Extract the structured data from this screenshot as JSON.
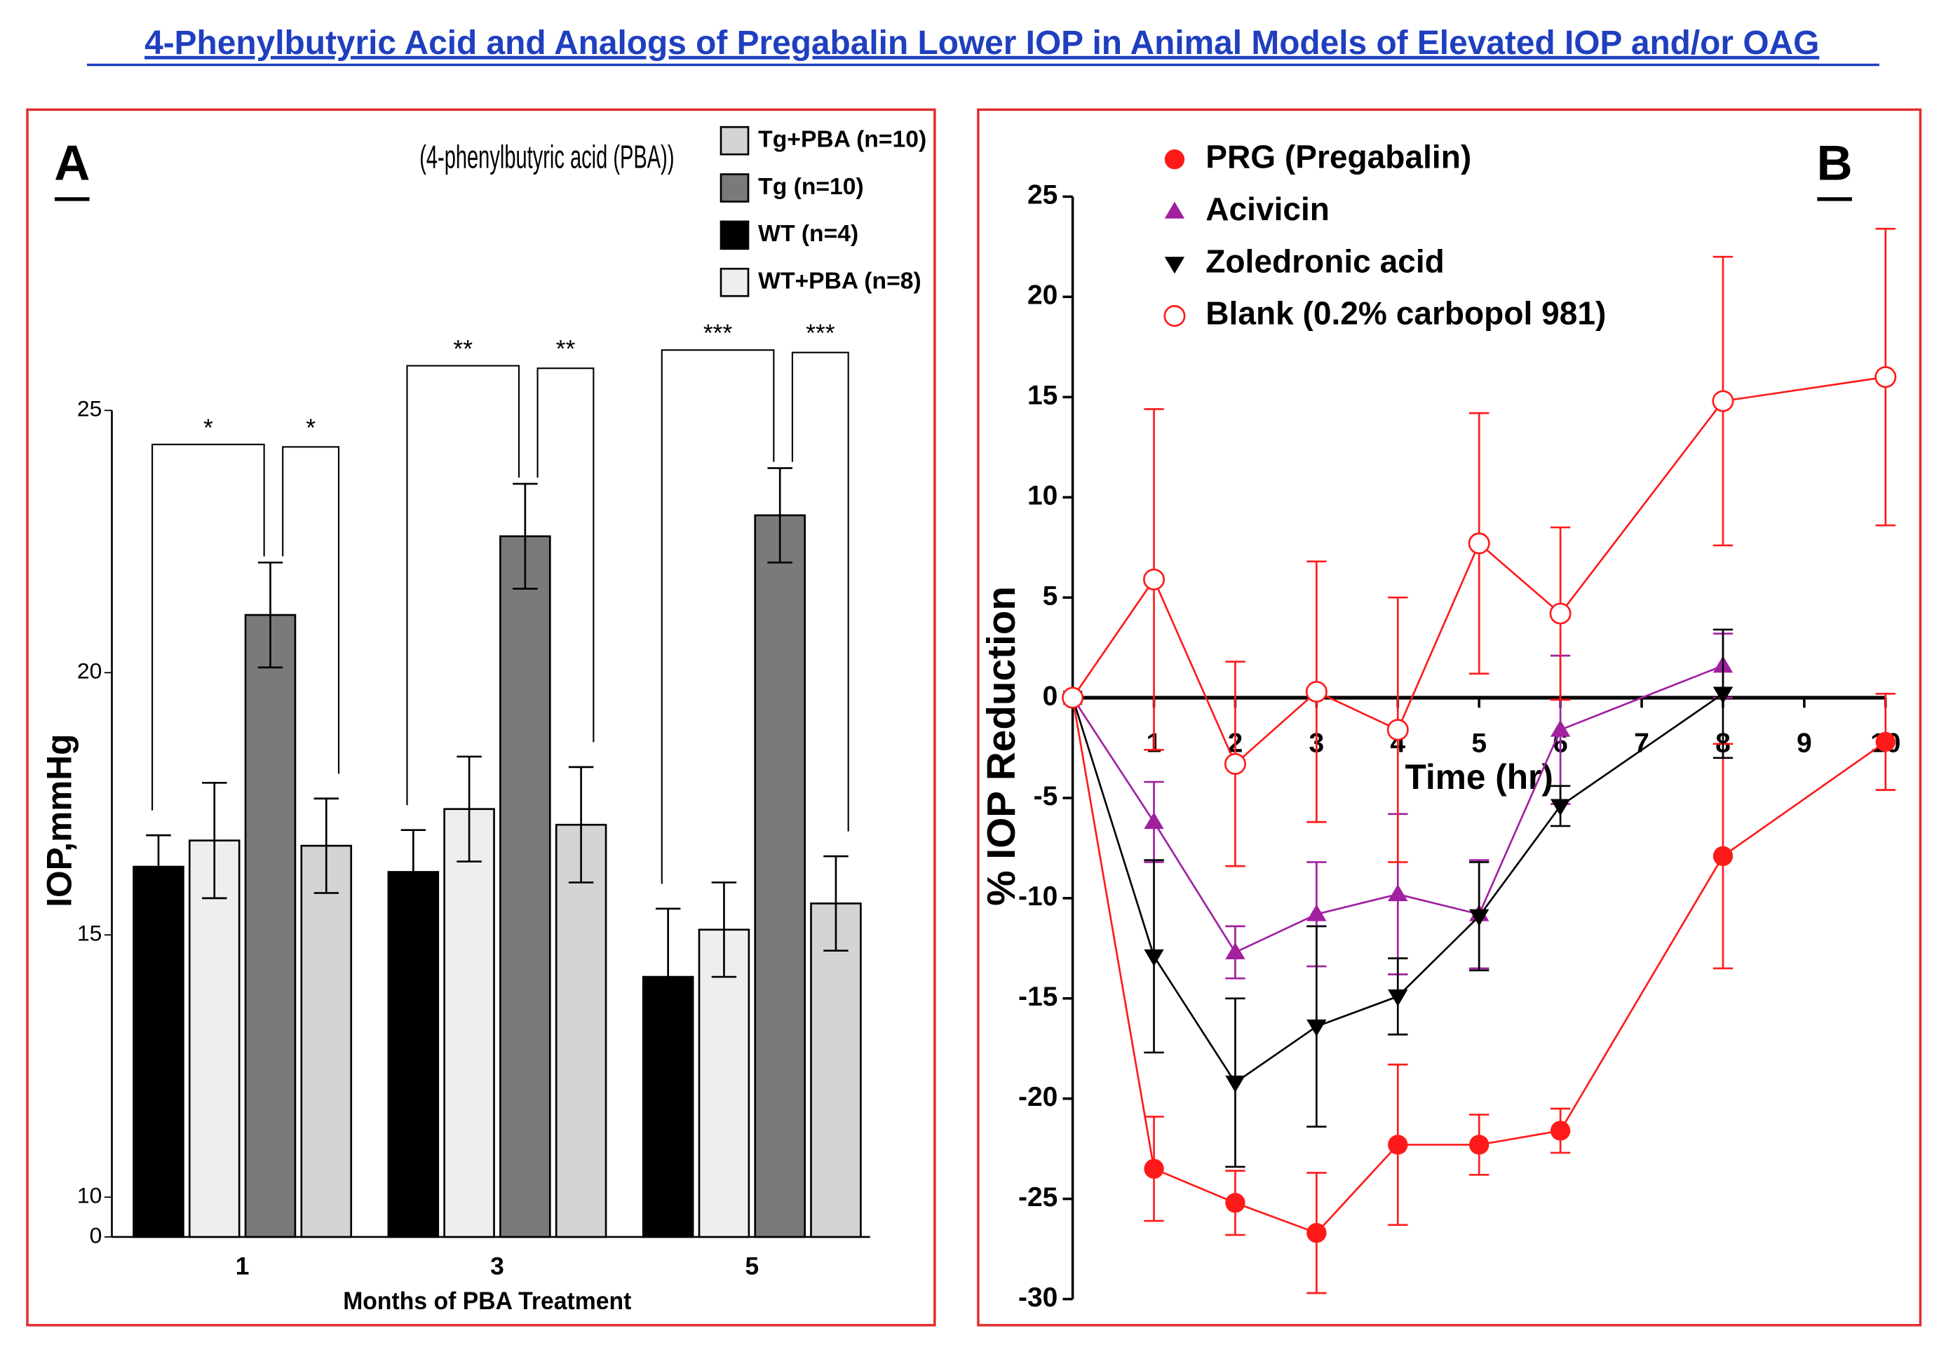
{
  "title": "4-Phenylbutyric Acid and Analogs of Pregabalin Lower IOP in Animal Models of Elevated IOP and/or OAG",
  "chart_data": [
    {
      "type": "bar",
      "panel_label": "A",
      "annotation": "(4-phenylbutyric acid (PBA))",
      "categories": [
        "1",
        "3",
        "5"
      ],
      "xlabel": "Months of PBA Treatment",
      "ylabel": "IOP,mmHg",
      "ylim": [
        0,
        25
      ],
      "ybreak": [
        0,
        10
      ],
      "yticks": [
        0,
        10,
        15,
        20,
        25
      ],
      "series": [
        {
          "name": "WT (n=4)",
          "color": "#000000",
          "values": [
            16.3,
            16.2,
            14.2
          ],
          "errors": [
            0.6,
            0.8,
            1.3
          ]
        },
        {
          "name": "WT+PBA (n=8)",
          "color": "#eeeeee",
          "values": [
            16.8,
            17.4,
            15.1
          ],
          "errors": [
            1.1,
            1.0,
            0.9
          ]
        },
        {
          "name": "Tg (n=10)",
          "color": "#7a7a7a",
          "values": [
            21.1,
            22.6,
            23.0
          ],
          "errors": [
            1.0,
            1.0,
            0.9
          ]
        },
        {
          "name": "Tg+PBA (n=10)",
          "color": "#d4d4d4",
          "values": [
            16.7,
            17.1,
            15.6
          ],
          "errors": [
            0.9,
            1.1,
            0.9
          ]
        }
      ],
      "significance": [
        "*",
        "**",
        "***"
      ]
    },
    {
      "type": "line",
      "panel_label": "B",
      "xlabel": "Time (hr)",
      "ylabel": "% IOP Reduction",
      "xlim": [
        0,
        10
      ],
      "xticks": [
        1,
        2,
        3,
        4,
        5,
        6,
        7,
        8,
        9,
        10
      ],
      "ylim": [
        -30,
        25
      ],
      "yticks": [
        25,
        20,
        15,
        10,
        5,
        0,
        -5,
        -10,
        -15,
        -20,
        -25,
        -30
      ],
      "series": [
        {
          "name": "PRG (Pregabalin)",
          "color": "#ff1a1a",
          "marker": "circle",
          "x": [
            0,
            1,
            2,
            3,
            4,
            5,
            6,
            8,
            10
          ],
          "values": [
            0,
            -23.5,
            -25.2,
            -26.7,
            -22.3,
            -22.3,
            -21.6,
            -7.9,
            -2.2
          ],
          "errors": [
            0,
            2.6,
            1.6,
            3.0,
            4.0,
            1.5,
            1.1,
            5.6,
            2.4
          ]
        },
        {
          "name": "Acivicin",
          "color": "#a020a0",
          "marker": "triangle-up",
          "x": [
            0,
            1,
            2,
            3,
            4,
            5,
            6,
            8
          ],
          "values": [
            0,
            -6.2,
            -12.7,
            -10.8,
            -9.8,
            -10.8,
            -1.6,
            1.6
          ],
          "errors": [
            0,
            2.0,
            1.3,
            2.6,
            4.0,
            2.7,
            3.7,
            1.6
          ]
        },
        {
          "name": "Zoledronic acid",
          "color": "#000000",
          "marker": "triangle-down",
          "x": [
            0,
            1,
            2,
            3,
            4,
            5,
            6,
            8
          ],
          "values": [
            0,
            -12.9,
            -19.2,
            -16.4,
            -14.9,
            -10.9,
            -5.4,
            0.2
          ],
          "errors": [
            0,
            4.8,
            4.2,
            5.0,
            1.9,
            2.7,
            1.0,
            3.2
          ]
        },
        {
          "name": "Blank (0.2% carbopol 981)",
          "color": "#ff1a1a",
          "marker": "circle-open",
          "x": [
            0,
            1,
            2,
            3,
            4,
            5,
            6,
            8,
            10
          ],
          "values": [
            0,
            5.9,
            -3.3,
            0.3,
            -1.6,
            7.7,
            4.2,
            14.8,
            16.0
          ],
          "errors": [
            0,
            8.5,
            5.1,
            6.5,
            6.6,
            6.5,
            4.3,
            7.2,
            7.4
          ]
        }
      ]
    }
  ]
}
